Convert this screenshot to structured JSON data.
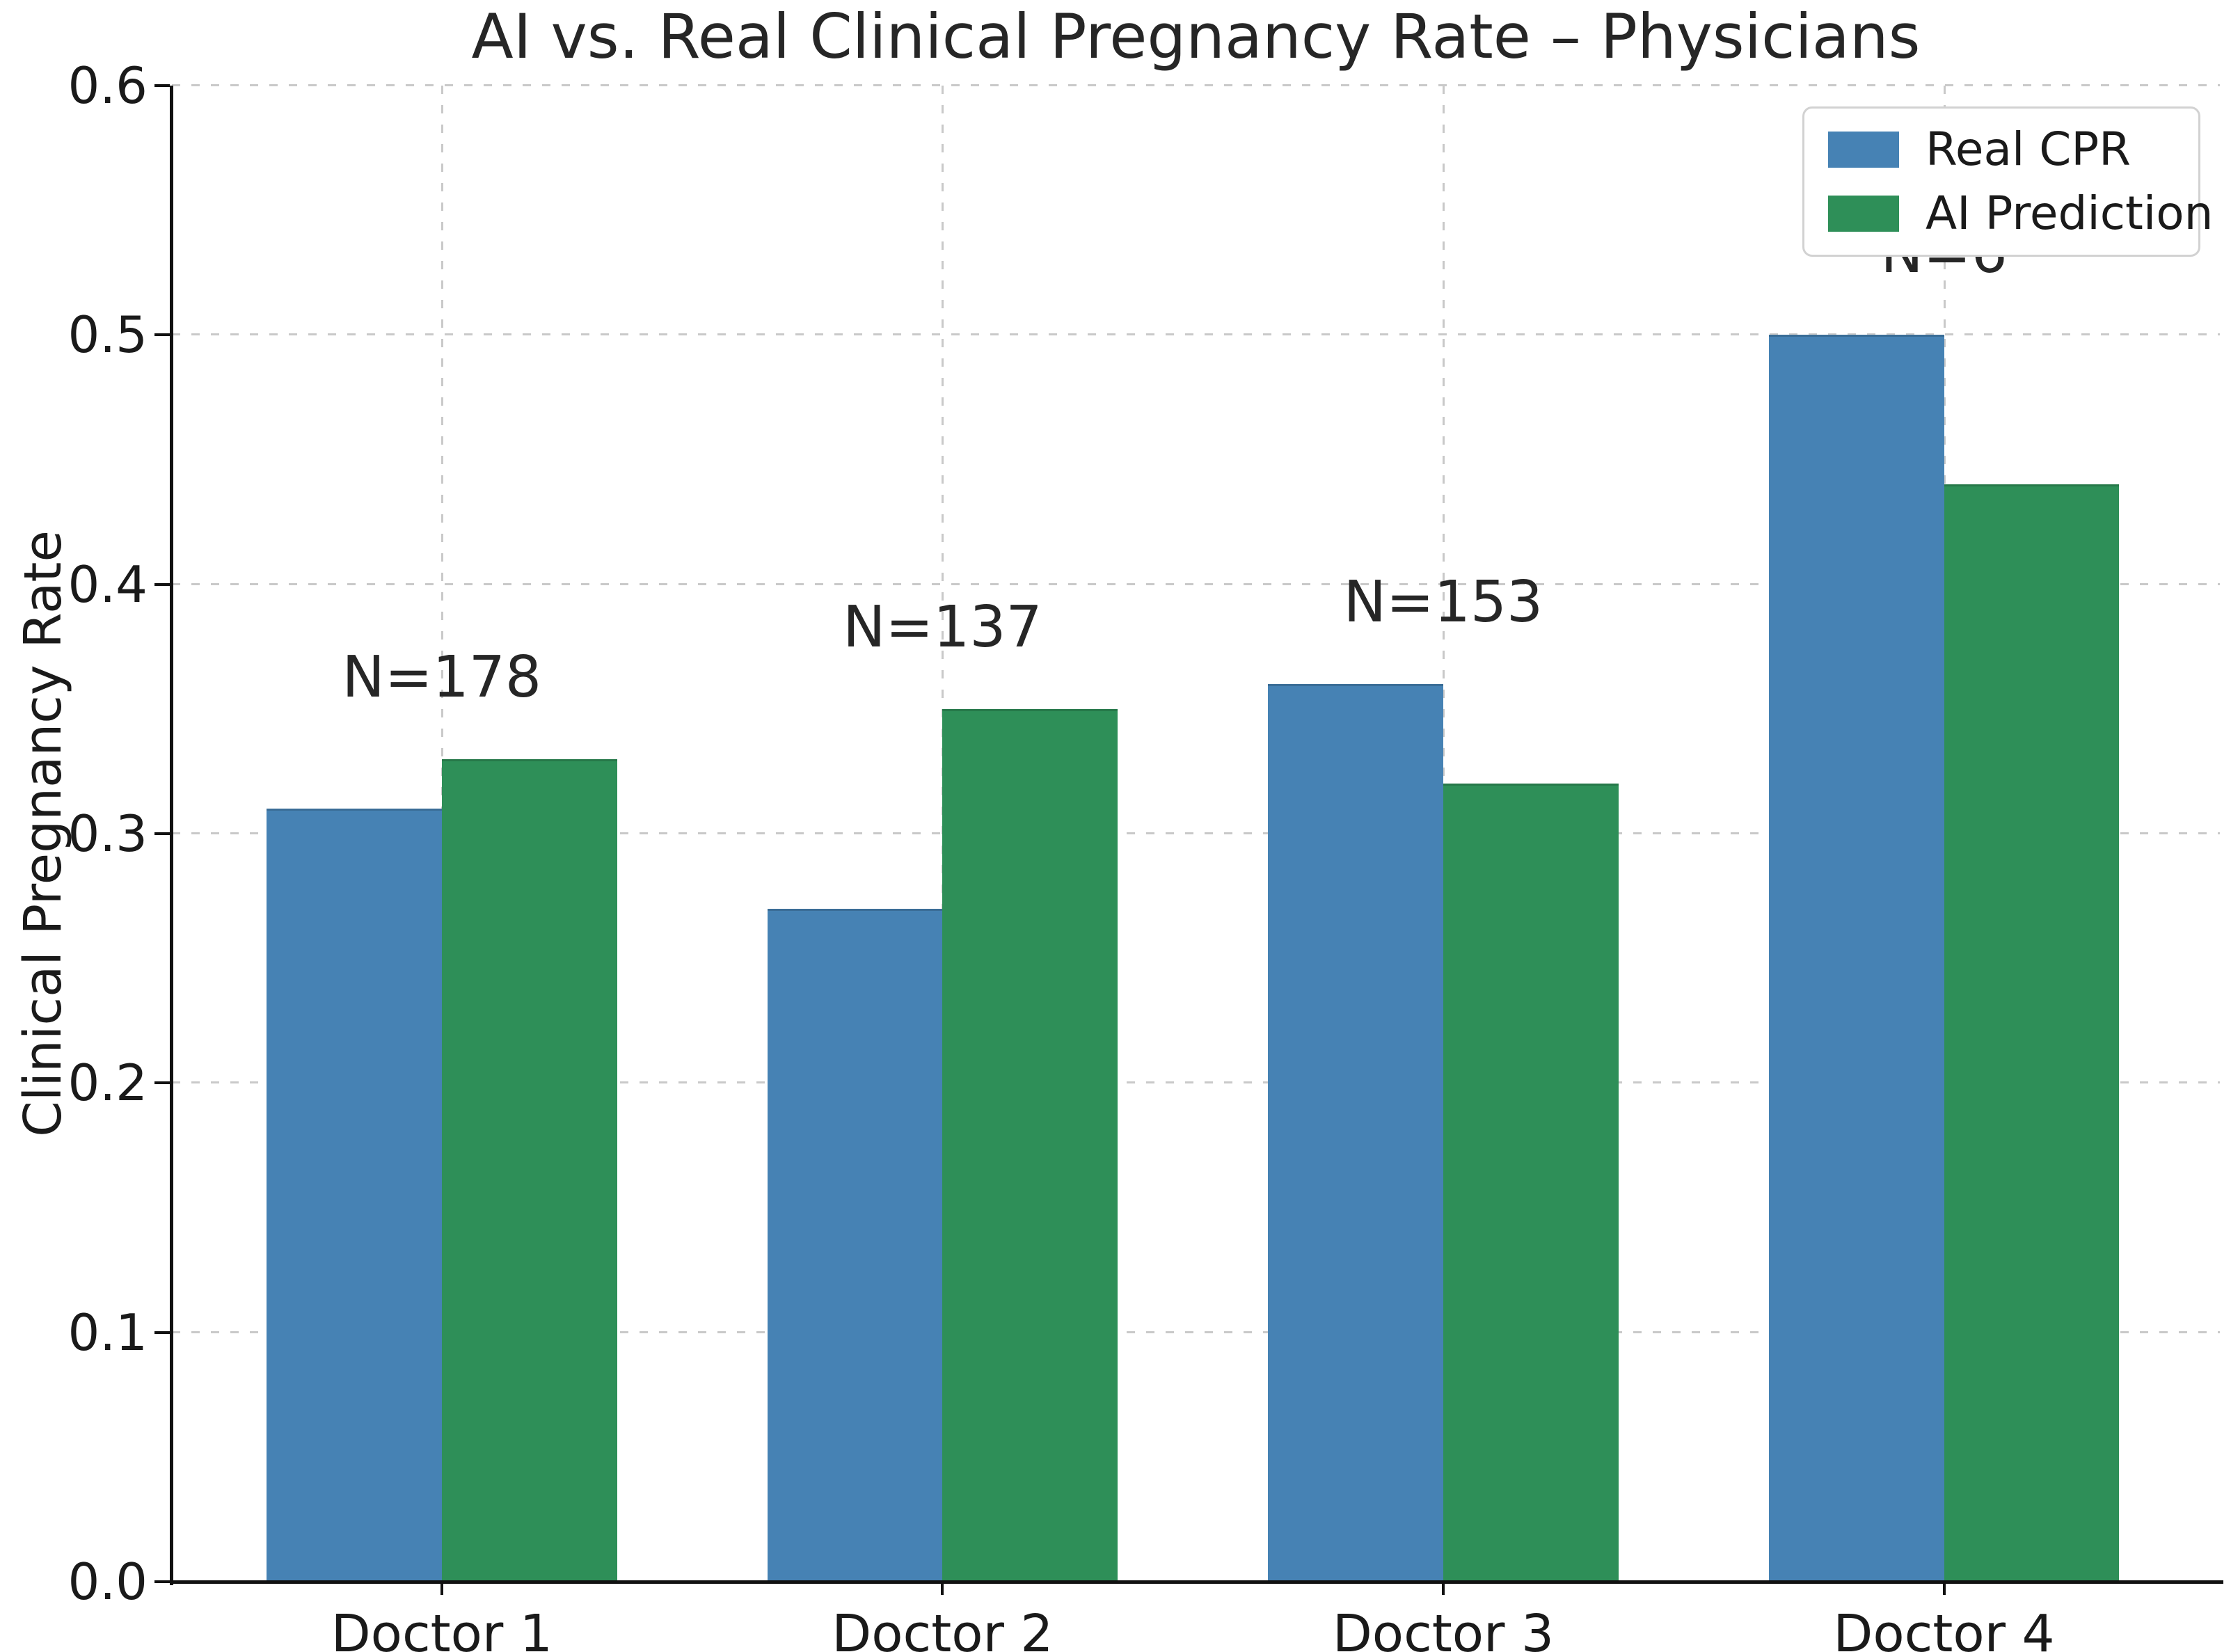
{
  "chart_data": {
    "type": "bar",
    "title": "AI vs. Real Clinical Pregnancy Rate – Physicians",
    "xlabel": "",
    "ylabel": "Clinical Pregnancy Rate",
    "categories": [
      "Doctor 1",
      "Doctor 2",
      "Doctor 3",
      "Doctor 4"
    ],
    "series": [
      {
        "name": "Real CPR",
        "color": "#4682B4",
        "values": [
          0.31,
          0.27,
          0.36,
          0.5
        ]
      },
      {
        "name": "AI Prediction",
        "color": "#2E8F58",
        "values": [
          0.33,
          0.35,
          0.32,
          0.44
        ]
      }
    ],
    "annotations": [
      "N=178",
      "N=137",
      "N=153",
      "N=6"
    ],
    "ylim": [
      0.0,
      0.6
    ],
    "yticks": [
      0.0,
      0.1,
      0.2,
      0.3,
      0.4,
      0.5,
      0.6
    ],
    "grid": "dashed",
    "legend_position": "upper right",
    "colors": {
      "grid": "#c9c9c9",
      "spine": "#111111",
      "text": "#1a1a1a",
      "title": "#262626",
      "background": "#ffffff"
    }
  }
}
